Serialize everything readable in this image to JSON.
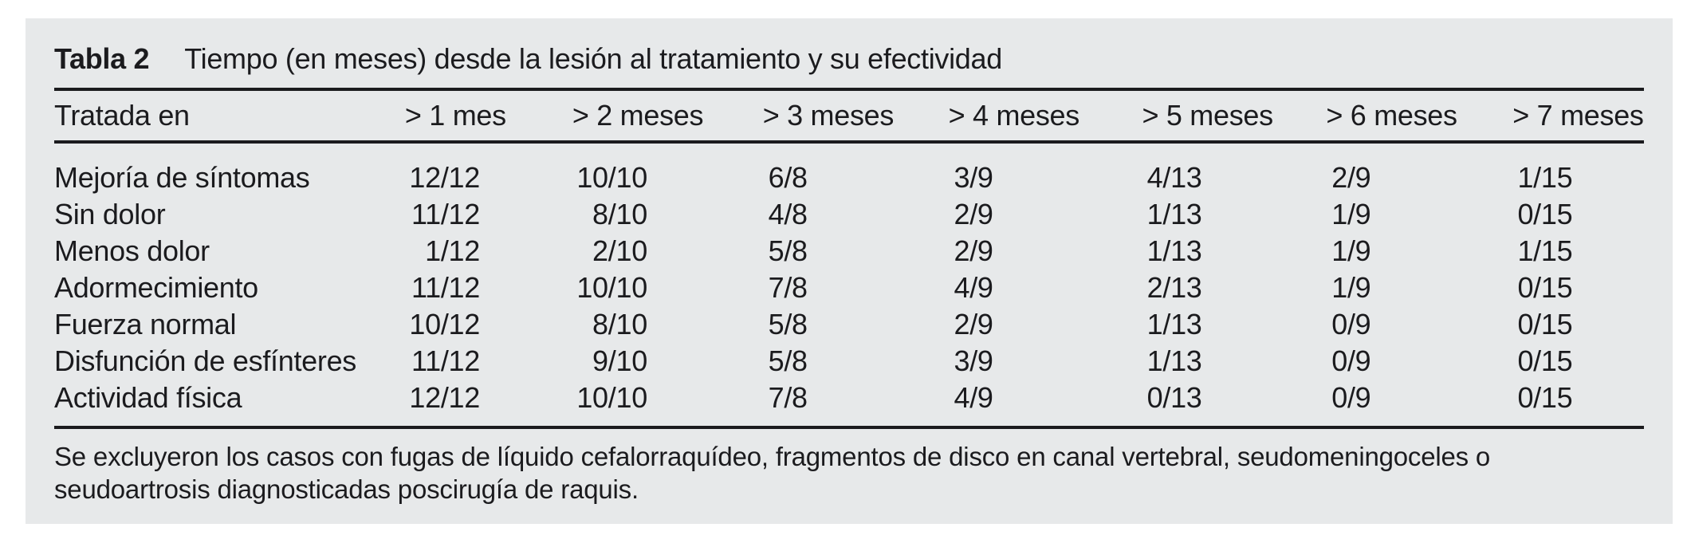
{
  "colors": {
    "page_background": "#ffffff",
    "panel_background": "#e7e9ea",
    "text": "#1b1b1e",
    "rule": "#1b1b1e"
  },
  "caption": {
    "label": "Tabla 2",
    "title": "Tiempo (en meses) desde la lesión al tratamiento y su efectividad"
  },
  "table": {
    "columns": [
      "Tratada en",
      "> 1 mes",
      "> 2 meses",
      "> 3 meses",
      "> 4 meses",
      "> 5 meses",
      "> 6 meses",
      "> 7 meses"
    ],
    "rows": [
      {
        "label": "Mejoría de síntomas",
        "values": [
          "12/12",
          "10/10",
          "6/8",
          "3/9",
          "4/13",
          "2/9",
          "1/15"
        ]
      },
      {
        "label": "Sin dolor",
        "values": [
          "11/12",
          "8/10",
          "4/8",
          "2/9",
          "1/13",
          "1/9",
          "0/15"
        ]
      },
      {
        "label": "Menos dolor",
        "values": [
          "1/12",
          "2/10",
          "5/8",
          "2/9",
          "1/13",
          "1/9",
          "1/15"
        ]
      },
      {
        "label": "Adormecimiento",
        "values": [
          "11/12",
          "10/10",
          "7/8",
          "4/9",
          "2/13",
          "1/9",
          "0/15"
        ]
      },
      {
        "label": "Fuerza normal",
        "values": [
          "10/12",
          "8/10",
          "5/8",
          "2/9",
          "1/13",
          "0/9",
          "0/15"
        ]
      },
      {
        "label": "Disfunción de esfínteres",
        "values": [
          "11/12",
          "9/10",
          "5/8",
          "3/9",
          "1/13",
          "0/9",
          "0/15"
        ]
      },
      {
        "label": "Actividad física",
        "values": [
          "12/12",
          "10/10",
          "7/8",
          "4/9",
          "0/13",
          "0/9",
          "0/15"
        ]
      }
    ]
  },
  "footnote": {
    "lines": [
      "Se excluyeron los casos con fugas de líquido cefalorraquídeo, fragmentos de disco en canal vertebral, seudomeningoceles o",
      "seudoartrosis diagnosticadas poscirugía de raquis."
    ]
  }
}
